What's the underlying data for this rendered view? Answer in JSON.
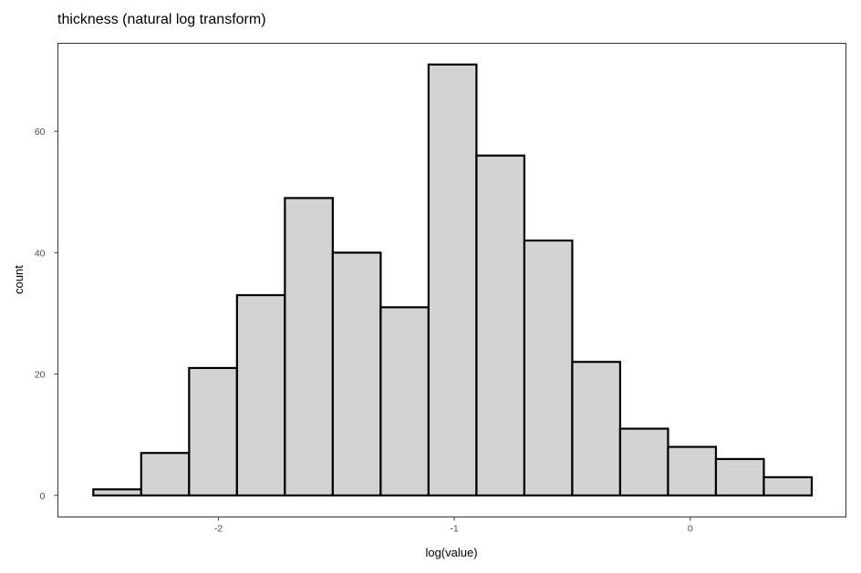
{
  "chart_data": {
    "type": "bar",
    "subtype": "histogram",
    "title": "thickness (natural log transform)",
    "xlabel": "log(value)",
    "ylabel": "count",
    "x_range": [
      -2.68,
      0.66
    ],
    "ylim": [
      -3.55,
      74.5
    ],
    "xticks": [
      {
        "value": -2,
        "label": "-2"
      },
      {
        "value": -1,
        "label": "-1"
      },
      {
        "value": 0,
        "label": "0"
      }
    ],
    "yticks": [
      {
        "value": 0,
        "label": "0"
      },
      {
        "value": 20,
        "label": "20"
      },
      {
        "value": 40,
        "label": "40"
      },
      {
        "value": 60,
        "label": "60"
      }
    ],
    "bins": [
      {
        "start": -2.53,
        "end": -2.327,
        "count": 1
      },
      {
        "start": -2.327,
        "end": -2.124,
        "count": 7
      },
      {
        "start": -2.124,
        "end": -1.921,
        "count": 21
      },
      {
        "start": -1.921,
        "end": -1.718,
        "count": 33
      },
      {
        "start": -1.718,
        "end": -1.515,
        "count": 49
      },
      {
        "start": -1.515,
        "end": -1.312,
        "count": 40
      },
      {
        "start": -1.312,
        "end": -1.109,
        "count": 31
      },
      {
        "start": -1.109,
        "end": -0.906,
        "count": 71
      },
      {
        "start": -0.906,
        "end": -0.703,
        "count": 56
      },
      {
        "start": -0.703,
        "end": -0.5,
        "count": 42
      },
      {
        "start": -0.5,
        "end": -0.297,
        "count": 22
      },
      {
        "start": -0.297,
        "end": -0.094,
        "count": 11
      },
      {
        "start": -0.094,
        "end": 0.109,
        "count": 8
      },
      {
        "start": 0.109,
        "end": 0.312,
        "count": 6
      },
      {
        "start": 0.312,
        "end": 0.515,
        "count": 3
      }
    ],
    "bar_fill": "#d3d3d3",
    "bar_stroke": "#000000",
    "grid": false,
    "legend": "none"
  }
}
